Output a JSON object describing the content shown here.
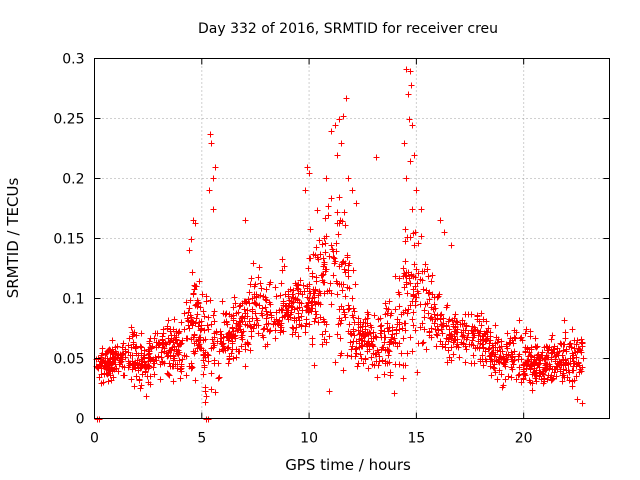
{
  "chart_data": {
    "type": "scatter",
    "title": "Day 332 of 2016, SRMTID for receiver creu",
    "xlabel": "GPS time / hours",
    "ylabel": "SRMTID / TECUs",
    "xlim": [
      0,
      24
    ],
    "ylim": [
      0,
      0.3
    ],
    "xticks": [
      0,
      5,
      10,
      15,
      20
    ],
    "yticks": [
      0,
      0.05,
      0.1,
      0.15,
      0.2,
      0.25,
      0.3
    ],
    "grid": true,
    "marker": "+",
    "series": [
      {
        "name": "SRMTID",
        "color": "#ff0000",
        "profile": {
          "hours": [
            0,
            0.5,
            1,
            1.5,
            2,
            2.5,
            3,
            3.5,
            4,
            4.5,
            5,
            5.5,
            6,
            6.5,
            7,
            7.5,
            8,
            8.5,
            9,
            9.5,
            10,
            10.5,
            11,
            11.5,
            12,
            12.5,
            13,
            13.5,
            14,
            14.5,
            15,
            15.5,
            16,
            16.5,
            17,
            17.5,
            18,
            18.5,
            19,
            19.5,
            20,
            20.5,
            21,
            21.5,
            22,
            22.5,
            22.8
          ],
          "mean": [
            0.045,
            0.045,
            0.05,
            0.055,
            0.045,
            0.045,
            0.055,
            0.06,
            0.06,
            0.08,
            0.07,
            0.06,
            0.065,
            0.075,
            0.08,
            0.095,
            0.09,
            0.09,
            0.095,
            0.09,
            0.1,
            0.11,
            0.12,
            0.12,
            0.08,
            0.065,
            0.06,
            0.065,
            0.075,
            0.11,
            0.12,
            0.1,
            0.08,
            0.07,
            0.075,
            0.065,
            0.07,
            0.055,
            0.05,
            0.06,
            0.055,
            0.045,
            0.045,
            0.05,
            0.05,
            0.055,
            0.05
          ],
          "spread": [
            0.01,
            0.012,
            0.013,
            0.02,
            0.015,
            0.018,
            0.02,
            0.02,
            0.02,
            0.04,
            0.03,
            0.05,
            0.02,
            0.02,
            0.025,
            0.025,
            0.025,
            0.025,
            0.025,
            0.02,
            0.04,
            0.05,
            0.06,
            0.06,
            0.03,
            0.02,
            0.02,
            0.025,
            0.03,
            0.06,
            0.05,
            0.03,
            0.02,
            0.02,
            0.02,
            0.02,
            0.02,
            0.02,
            0.018,
            0.02,
            0.02,
            0.015,
            0.015,
            0.015,
            0.02,
            0.02,
            0.02
          ],
          "samples": 1700
        },
        "outliers": [
          {
            "x": 0.1,
            "y": 0.0
          },
          {
            "x": 0.2,
            "y": 0.0
          },
          {
            "x": 5.2,
            "y": 0.0
          },
          {
            "x": 5.3,
            "y": 0.0
          },
          {
            "x": 4.6,
            "y": 0.165
          },
          {
            "x": 4.7,
            "y": 0.163
          },
          {
            "x": 4.5,
            "y": 0.15
          },
          {
            "x": 4.4,
            "y": 0.14
          },
          {
            "x": 5.4,
            "y": 0.237
          },
          {
            "x": 5.45,
            "y": 0.23
          },
          {
            "x": 5.5,
            "y": 0.2
          },
          {
            "x": 5.6,
            "y": 0.21
          },
          {
            "x": 5.35,
            "y": 0.19
          },
          {
            "x": 5.5,
            "y": 0.175
          },
          {
            "x": 7.0,
            "y": 0.165
          },
          {
            "x": 9.9,
            "y": 0.21
          },
          {
            "x": 10.0,
            "y": 0.205
          },
          {
            "x": 9.8,
            "y": 0.19
          },
          {
            "x": 11.0,
            "y": 0.24
          },
          {
            "x": 11.2,
            "y": 0.245
          },
          {
            "x": 11.4,
            "y": 0.25
          },
          {
            "x": 11.6,
            "y": 0.252
          },
          {
            "x": 11.7,
            "y": 0.267
          },
          {
            "x": 11.5,
            "y": 0.23
          },
          {
            "x": 11.3,
            "y": 0.22
          },
          {
            "x": 10.8,
            "y": 0.2
          },
          {
            "x": 11.8,
            "y": 0.2
          },
          {
            "x": 12.0,
            "y": 0.19
          },
          {
            "x": 12.2,
            "y": 0.18
          },
          {
            "x": 13.1,
            "y": 0.218
          },
          {
            "x": 14.5,
            "y": 0.291
          },
          {
            "x": 14.7,
            "y": 0.29
          },
          {
            "x": 14.75,
            "y": 0.278
          },
          {
            "x": 14.6,
            "y": 0.27
          },
          {
            "x": 14.65,
            "y": 0.25
          },
          {
            "x": 14.8,
            "y": 0.245
          },
          {
            "x": 14.4,
            "y": 0.23
          },
          {
            "x": 14.9,
            "y": 0.22
          },
          {
            "x": 14.7,
            "y": 0.215
          },
          {
            "x": 14.5,
            "y": 0.2
          },
          {
            "x": 15.0,
            "y": 0.19
          },
          {
            "x": 15.2,
            "y": 0.175
          },
          {
            "x": 16.1,
            "y": 0.165
          },
          {
            "x": 16.3,
            "y": 0.155
          },
          {
            "x": 16.6,
            "y": 0.145
          },
          {
            "x": 22.7,
            "y": 0.013
          },
          {
            "x": 22.5,
            "y": 0.016
          }
        ]
      }
    ]
  }
}
